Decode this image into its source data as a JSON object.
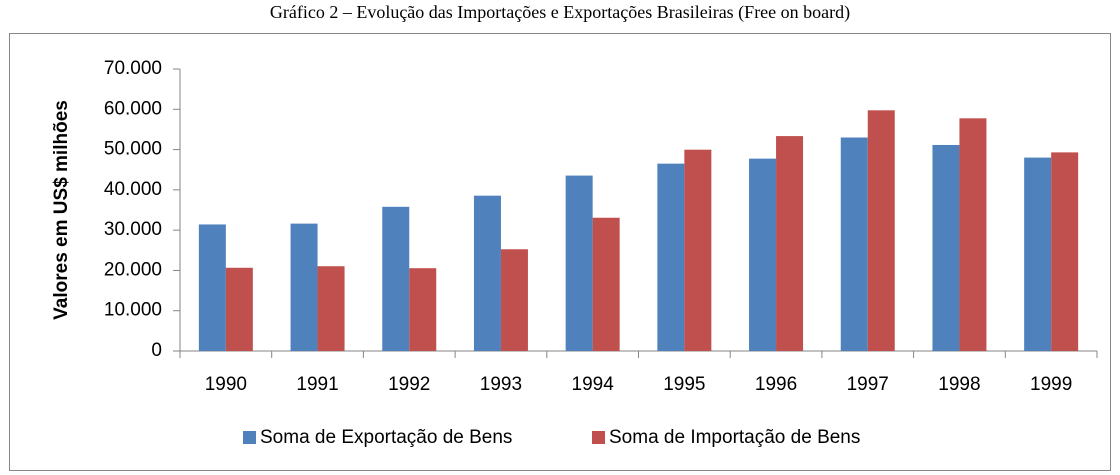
{
  "chart_data": {
    "type": "bar",
    "title": "Gráfico 2 – Evolução das Importações e Exportações Brasileiras (Free on board)",
    "ylabel": "Valores em US$ milhões",
    "categories": [
      "1990",
      "1991",
      "1992",
      "1993",
      "1994",
      "1995",
      "1996",
      "1997",
      "1998",
      "1999"
    ],
    "series": [
      {
        "name": "Soma de Exportação de Bens",
        "color": "#4f81bd",
        "values": [
          31414,
          31620,
          35793,
          38555,
          43545,
          46506,
          47747,
          52994,
          51140,
          48011
        ]
      },
      {
        "name": "Soma de Importação de Bens",
        "color": "#c0504d",
        "values": [
          20661,
          21041,
          20554,
          25256,
          33079,
          49972,
          53346,
          59747,
          57763,
          49302
        ]
      }
    ],
    "ylim": [
      0,
      70000
    ],
    "yticks": [
      0,
      {
        "value": 10000,
        "label": "10.000"
      },
      {
        "value": 20000,
        "label": "20.000"
      },
      {
        "value": 30000,
        "label": "30.000"
      },
      {
        "value": 40000,
        "label": "40.000"
      },
      {
        "value": 50000,
        "label": "50.000"
      },
      {
        "value": 60000,
        "label": "60.000"
      },
      {
        "value": 70000,
        "label": "70.000"
      }
    ],
    "grid": false,
    "legend": "bottom"
  }
}
